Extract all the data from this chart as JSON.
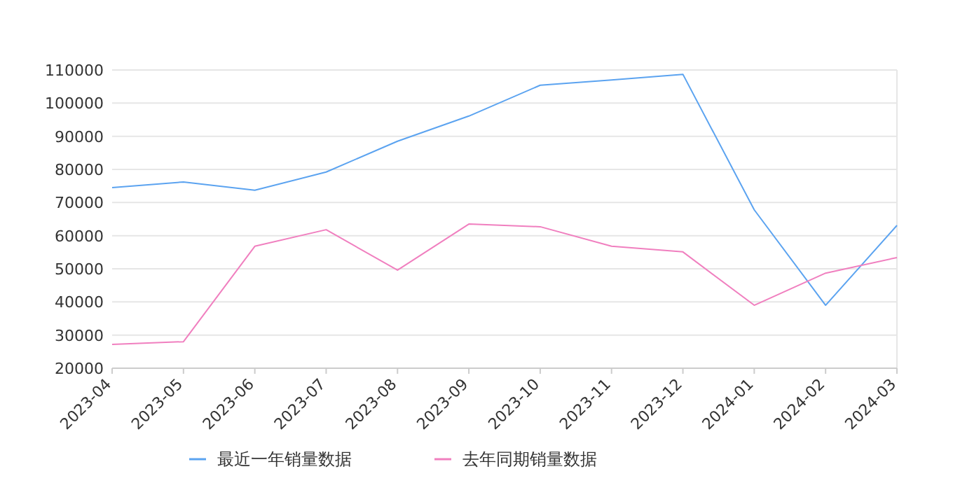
{
  "chart_data": {
    "type": "line",
    "categories": [
      "2023-04",
      "2023-05",
      "2023-06",
      "2023-07",
      "2023-08",
      "2023-09",
      "2023-10",
      "2023-11",
      "2023-12",
      "2024-01",
      "2024-02",
      "2024-03"
    ],
    "series": [
      {
        "name": "最近一年销量数据",
        "color": "#5ba3f0",
        "values": [
          74500,
          76200,
          73700,
          79200,
          88500,
          96100,
          105400,
          107000,
          108700,
          67800,
          39000,
          63100
        ]
      },
      {
        "name": "去年同期销量数据",
        "color": "#f07fbf",
        "values": [
          27200,
          28000,
          56800,
          61800,
          49600,
          63500,
          62700,
          56800,
          55100,
          39000,
          48700,
          53400
        ]
      }
    ],
    "ylim": [
      20000,
      110000
    ],
    "yticks": [
      20000,
      30000,
      40000,
      50000,
      60000,
      70000,
      80000,
      90000,
      100000,
      110000
    ],
    "grid": "y",
    "legend": "bottom"
  }
}
